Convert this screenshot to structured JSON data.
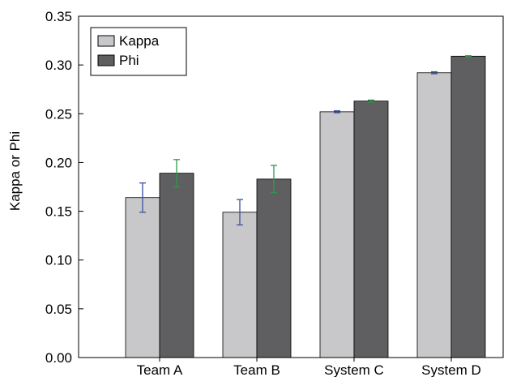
{
  "chart_data": {
    "type": "bar",
    "categories": [
      "Team A",
      "Team B",
      "System C",
      "System D"
    ],
    "series": [
      {
        "name": "Kappa",
        "values": [
          0.164,
          0.149,
          0.252,
          0.292
        ],
        "error_low": [
          0.149,
          0.136,
          0.251,
          0.291
        ],
        "error_high": [
          0.179,
          0.162,
          0.253,
          0.293
        ],
        "fill": "#c8c8ca",
        "error_color": "#3a4fa0"
      },
      {
        "name": "Phi",
        "values": [
          0.189,
          0.183,
          0.263,
          0.309
        ],
        "error_low": [
          0.175,
          0.169,
          0.262,
          0.3085
        ],
        "error_high": [
          0.203,
          0.197,
          0.264,
          0.3095
        ],
        "fill": "#5f5f61",
        "error_color": "#2e9a4a"
      }
    ],
    "title": "",
    "xlabel": "",
    "ylabel": "Kappa or Phi",
    "ylim": [
      0.0,
      0.35
    ],
    "yticks": [
      "0.00",
      "0.05",
      "0.10",
      "0.15",
      "0.20",
      "0.25",
      "0.30",
      "0.35"
    ],
    "grid": false,
    "legend_position": "top-left"
  }
}
